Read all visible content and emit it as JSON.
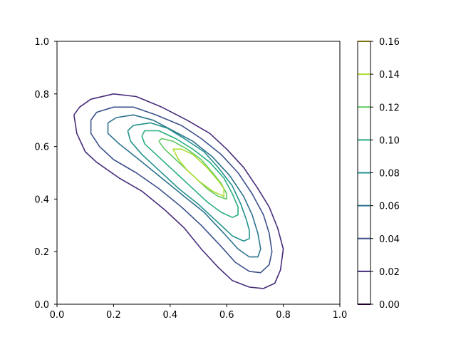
{
  "chart_data": {
    "type": "contour",
    "title": "",
    "xlabel": "",
    "ylabel": "",
    "xlim": [
      0,
      1
    ],
    "ylim": [
      0,
      1
    ],
    "x_ticks": [
      "0.0",
      "0.2",
      "0.4",
      "0.6",
      "0.8",
      "1.0"
    ],
    "y_ticks": [
      "0.0",
      "0.2",
      "0.4",
      "0.6",
      "0.8",
      "1.0"
    ],
    "grid": false,
    "colorbar": {
      "range": [
        0,
        0.16
      ],
      "ticks": [
        "0.00",
        "0.02",
        "0.04",
        "0.06",
        "0.08",
        "0.10",
        "0.12",
        "0.14",
        "0.16"
      ]
    },
    "levels": [
      {
        "value": 0.02,
        "color": "#472c7a",
        "points": [
          [
            0.06,
            0.72
          ],
          [
            0.08,
            0.75
          ],
          [
            0.12,
            0.78
          ],
          [
            0.2,
            0.8
          ],
          [
            0.28,
            0.79
          ],
          [
            0.37,
            0.75
          ],
          [
            0.46,
            0.7
          ],
          [
            0.54,
            0.65
          ],
          [
            0.6,
            0.59
          ],
          [
            0.66,
            0.52
          ],
          [
            0.71,
            0.44
          ],
          [
            0.75,
            0.37
          ],
          [
            0.78,
            0.29
          ],
          [
            0.8,
            0.21
          ],
          [
            0.79,
            0.13
          ],
          [
            0.77,
            0.08
          ],
          [
            0.73,
            0.06
          ],
          [
            0.68,
            0.065
          ],
          [
            0.62,
            0.09
          ],
          [
            0.57,
            0.14
          ],
          [
            0.51,
            0.21
          ],
          [
            0.45,
            0.29
          ],
          [
            0.38,
            0.36
          ],
          [
            0.3,
            0.43
          ],
          [
            0.22,
            0.48
          ],
          [
            0.14,
            0.54
          ],
          [
            0.1,
            0.58
          ],
          [
            0.07,
            0.65
          ],
          [
            0.06,
            0.72
          ]
        ]
      },
      {
        "value": 0.04,
        "color": "#3b518b",
        "points": [
          [
            0.12,
            0.7
          ],
          [
            0.14,
            0.73
          ],
          [
            0.2,
            0.75
          ],
          [
            0.27,
            0.75
          ],
          [
            0.35,
            0.72
          ],
          [
            0.44,
            0.68
          ],
          [
            0.51,
            0.63
          ],
          [
            0.58,
            0.57
          ],
          [
            0.64,
            0.5
          ],
          [
            0.69,
            0.42
          ],
          [
            0.73,
            0.34
          ],
          [
            0.75,
            0.27
          ],
          [
            0.76,
            0.2
          ],
          [
            0.75,
            0.15
          ],
          [
            0.72,
            0.12
          ],
          [
            0.68,
            0.125
          ],
          [
            0.63,
            0.16
          ],
          [
            0.58,
            0.22
          ],
          [
            0.51,
            0.3
          ],
          [
            0.44,
            0.37
          ],
          [
            0.36,
            0.44
          ],
          [
            0.28,
            0.5
          ],
          [
            0.2,
            0.55
          ],
          [
            0.15,
            0.6
          ],
          [
            0.12,
            0.65
          ],
          [
            0.12,
            0.7
          ]
        ]
      },
      {
        "value": 0.06,
        "color": "#2c728e",
        "points": [
          [
            0.18,
            0.69
          ],
          [
            0.21,
            0.71
          ],
          [
            0.27,
            0.72
          ],
          [
            0.34,
            0.7
          ],
          [
            0.41,
            0.66
          ],
          [
            0.48,
            0.62
          ],
          [
            0.55,
            0.56
          ],
          [
            0.61,
            0.49
          ],
          [
            0.66,
            0.41
          ],
          [
            0.69,
            0.34
          ],
          [
            0.71,
            0.27
          ],
          [
            0.72,
            0.21
          ],
          [
            0.71,
            0.18
          ],
          [
            0.68,
            0.18
          ],
          [
            0.64,
            0.21
          ],
          [
            0.59,
            0.27
          ],
          [
            0.52,
            0.35
          ],
          [
            0.45,
            0.41
          ],
          [
            0.37,
            0.48
          ],
          [
            0.29,
            0.55
          ],
          [
            0.22,
            0.61
          ],
          [
            0.18,
            0.65
          ],
          [
            0.18,
            0.69
          ]
        ]
      },
      {
        "value": 0.08,
        "color": "#21918c",
        "points": [
          [
            0.25,
            0.66
          ],
          [
            0.27,
            0.68
          ],
          [
            0.33,
            0.69
          ],
          [
            0.39,
            0.67
          ],
          [
            0.45,
            0.63
          ],
          [
            0.52,
            0.58
          ],
          [
            0.57,
            0.52
          ],
          [
            0.62,
            0.45
          ],
          [
            0.65,
            0.38
          ],
          [
            0.67,
            0.32
          ],
          [
            0.68,
            0.28
          ],
          [
            0.68,
            0.25
          ],
          [
            0.66,
            0.24
          ],
          [
            0.62,
            0.26
          ],
          [
            0.57,
            0.31
          ],
          [
            0.5,
            0.38
          ],
          [
            0.43,
            0.44
          ],
          [
            0.36,
            0.51
          ],
          [
            0.3,
            0.57
          ],
          [
            0.26,
            0.62
          ],
          [
            0.25,
            0.66
          ]
        ]
      },
      {
        "value": 0.1,
        "color": "#28ae80",
        "points": [
          [
            0.3,
            0.64
          ],
          [
            0.31,
            0.66
          ],
          [
            0.36,
            0.66
          ],
          [
            0.42,
            0.63
          ],
          [
            0.48,
            0.59
          ],
          [
            0.54,
            0.54
          ],
          [
            0.59,
            0.48
          ],
          [
            0.62,
            0.42
          ],
          [
            0.64,
            0.37
          ],
          [
            0.64,
            0.34
          ],
          [
            0.62,
            0.33
          ],
          [
            0.58,
            0.35
          ],
          [
            0.53,
            0.39
          ],
          [
            0.47,
            0.45
          ],
          [
            0.41,
            0.51
          ],
          [
            0.35,
            0.57
          ],
          [
            0.31,
            0.61
          ],
          [
            0.3,
            0.64
          ]
        ]
      },
      {
        "value": 0.12,
        "color": "#5ec962",
        "points": [
          [
            0.36,
            0.62
          ],
          [
            0.37,
            0.63
          ],
          [
            0.41,
            0.62
          ],
          [
            0.46,
            0.59
          ],
          [
            0.51,
            0.55
          ],
          [
            0.55,
            0.5
          ],
          [
            0.58,
            0.46
          ],
          [
            0.6,
            0.42
          ],
          [
            0.6,
            0.4
          ],
          [
            0.57,
            0.41
          ],
          [
            0.53,
            0.44
          ],
          [
            0.48,
            0.49
          ],
          [
            0.42,
            0.55
          ],
          [
            0.38,
            0.59
          ],
          [
            0.36,
            0.62
          ]
        ]
      },
      {
        "value": 0.14,
        "color": "#addc30",
        "points": [
          [
            0.41,
            0.59
          ],
          [
            0.44,
            0.59
          ],
          [
            0.48,
            0.57
          ],
          [
            0.53,
            0.52
          ],
          [
            0.57,
            0.47
          ],
          [
            0.59,
            0.44
          ],
          [
            0.59,
            0.41
          ],
          [
            0.55,
            0.43
          ],
          [
            0.5,
            0.47
          ],
          [
            0.46,
            0.51
          ],
          [
            0.43,
            0.55
          ],
          [
            0.41,
            0.59
          ]
        ]
      }
    ]
  },
  "colors": {
    "cbar_stops": [
      "#440154",
      "#482878",
      "#3e4989",
      "#31688e",
      "#26828e",
      "#1f9e89",
      "#35b779",
      "#6ece58",
      "#b5de2b",
      "#fde725"
    ],
    "cbar_line_colors": [
      "#440154",
      "#472c7a",
      "#3b518b",
      "#2c728e",
      "#21918c",
      "#28ae80",
      "#5ec962",
      "#addc30",
      "#fde725"
    ]
  }
}
